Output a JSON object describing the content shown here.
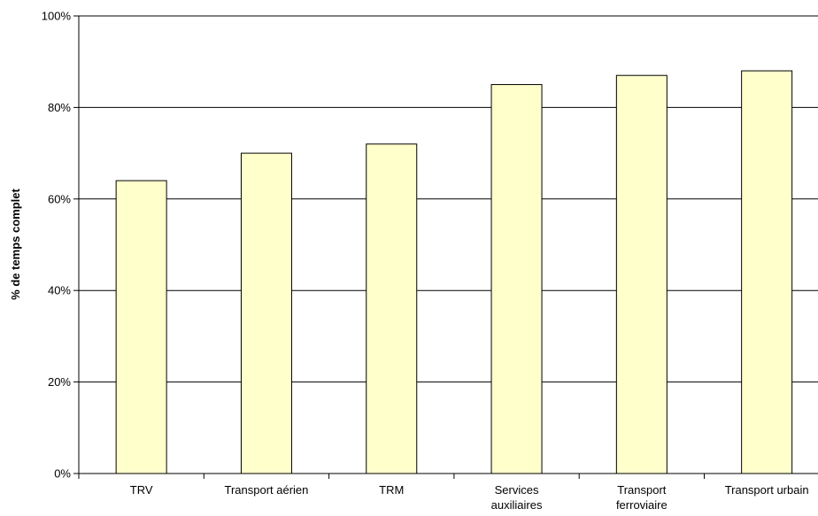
{
  "chart_data": {
    "type": "bar",
    "title": "",
    "xlabel": "",
    "ylabel": "% de temps complet",
    "categories": [
      [
        "TRV"
      ],
      [
        "Transport aérien"
      ],
      [
        "TRM"
      ],
      [
        "Services",
        "auxiliaires"
      ],
      [
        "Transport",
        "ferroviaire"
      ],
      [
        "Transport urbain"
      ]
    ],
    "values": [
      64,
      70,
      72,
      85,
      87,
      88
    ],
    "ylim": [
      0,
      100
    ],
    "y_ticks": [
      0,
      20,
      40,
      60,
      80,
      100
    ],
    "y_tick_labels": [
      "0%",
      "20%",
      "40%",
      "60%",
      "80%",
      "100%"
    ],
    "grid": true,
    "legend": "none",
    "colors": {
      "bar_fill": "#ffffcc",
      "bar_stroke": "#000000",
      "grid": "#000000"
    }
  }
}
